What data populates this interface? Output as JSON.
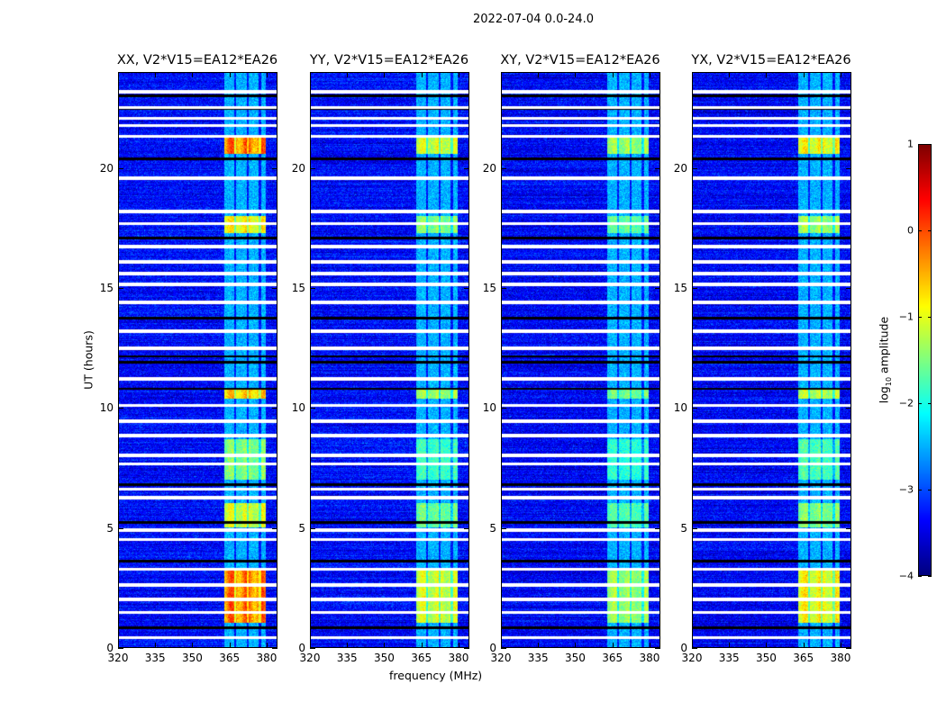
{
  "chart_data": {
    "type": "heatmap",
    "title": "2022-07-04 0.0-24.0",
    "xlabel": "frequency (MHz)",
    "ylabel": "UT (hours)",
    "xlim": [
      320,
      384.4
    ],
    "ylim": [
      0,
      24
    ],
    "xticks": [
      "320",
      "335",
      "350",
      "365",
      "380"
    ],
    "xtick_values": [
      320,
      335,
      350,
      365,
      380
    ],
    "yticks": [
      "0",
      "5",
      "10",
      "15",
      "20"
    ],
    "ytick_values": [
      0,
      5,
      10,
      15,
      20
    ],
    "panels": [
      {
        "title": "XX, V2*V15=EA12*EA26",
        "peak": 0.1
      },
      {
        "title": "YY, V2*V15=EA12*EA26",
        "peak": -0.9
      },
      {
        "title": "XY, V2*V15=EA12*EA26",
        "peak": -1.2
      },
      {
        "title": "YX, V2*V15=EA12*EA26",
        "peak": -0.7
      }
    ],
    "band_mhz": [
      363,
      380
    ],
    "flagged_hours": [
      0.4,
      1.45,
      2.0,
      2.6,
      3.25,
      4.5,
      4.9,
      6.25,
      6.6,
      7.65,
      8.0,
      8.85,
      9.45,
      10.1,
      11.2,
      12.5,
      13.2,
      14.4,
      15.15,
      15.6,
      16.1,
      16.75,
      17.7,
      18.2,
      19.6,
      21.35,
      21.8,
      22.1,
      22.55,
      23.2
    ],
    "zero_hours": [
      0.8,
      3.6,
      5.2,
      6.8,
      10.8,
      11.9,
      12.15,
      13.75,
      17.1,
      20.4,
      22.5,
      23.05
    ],
    "colorbar": {
      "label": "log",
      "label_sub": "10",
      "label_rest": " amplitude",
      "range": [
        -4,
        1
      ],
      "ticks": [
        "1",
        "0",
        "−1",
        "−2",
        "−3",
        "−4"
      ],
      "tick_values": [
        1,
        0,
        -1,
        -2,
        -3,
        -4
      ],
      "colormap": "jet"
    }
  }
}
